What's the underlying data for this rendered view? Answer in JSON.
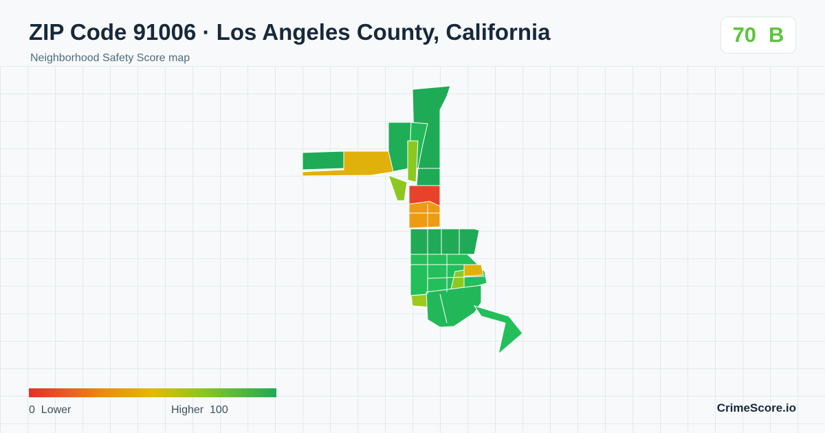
{
  "header": {
    "title": "ZIP Code 91006 · Los Angeles County, California",
    "subtitle": "Neighborhood Safety Score map"
  },
  "score": {
    "value": 70,
    "grade": "B"
  },
  "legend": {
    "min": 0,
    "min_label": "Lower",
    "max_label": "Higher",
    "max": 100
  },
  "brand": "CrimeScore.io"
}
